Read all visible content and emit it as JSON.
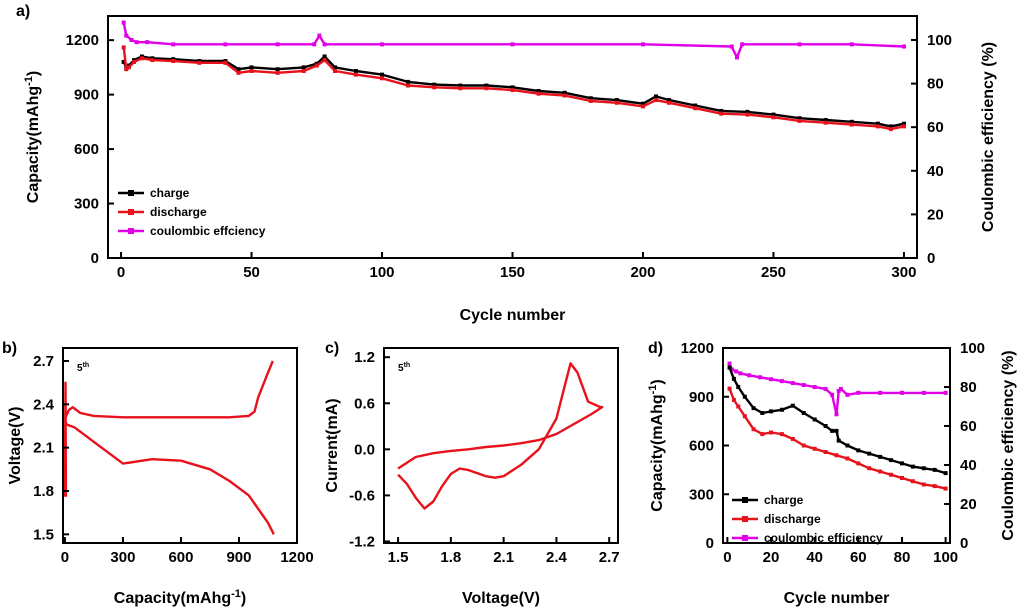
{
  "colors": {
    "charge": "#000000",
    "discharge": "#e8121c",
    "ce": "#e000e8",
    "axis": "#000000"
  },
  "chart_data": [
    {
      "panel_label": "a)",
      "type": "line",
      "xlabel": "Cycle number",
      "ylabel_left_base": "Capacity(mAhg",
      "ylabel_left_sup": "-1",
      "ylabel_left_end": ")",
      "ylabel_right": "Coulombic efficiency (%)",
      "xlim": [
        -5,
        305
      ],
      "ylim_left": [
        0,
        1333
      ],
      "ylim_right": [
        0,
        111
      ],
      "xticks": [
        "0",
        "50",
        "100",
        "150",
        "200",
        "250",
        "300"
      ],
      "yticks_left": [
        "0",
        "300",
        "600",
        "900",
        "1200"
      ],
      "yticks_right": [
        "0",
        "20",
        "40",
        "60",
        "80",
        "100"
      ],
      "legend": [
        "charge",
        "discharge",
        "coulombic effciency"
      ],
      "legend_position": "bottom-left",
      "series": [
        {
          "name": "charge",
          "axis": "left",
          "x": [
            1,
            2,
            3,
            5,
            8,
            12,
            20,
            30,
            40,
            45,
            50,
            60,
            70,
            75,
            78,
            82,
            90,
            100,
            110,
            120,
            130,
            140,
            150,
            160,
            170,
            180,
            190,
            200,
            205,
            210,
            220,
            230,
            240,
            250,
            260,
            270,
            280,
            290,
            295,
            300
          ],
          "y": [
            1080,
            1050,
            1060,
            1090,
            1110,
            1100,
            1095,
            1085,
            1085,
            1040,
            1050,
            1040,
            1050,
            1070,
            1110,
            1050,
            1030,
            1010,
            970,
            955,
            950,
            950,
            940,
            920,
            910,
            880,
            870,
            850,
            890,
            870,
            840,
            810,
            805,
            790,
            770,
            760,
            750,
            740,
            725,
            740
          ]
        },
        {
          "name": "discharge",
          "axis": "left",
          "x": [
            1,
            2,
            3,
            5,
            8,
            12,
            20,
            30,
            40,
            45,
            50,
            60,
            70,
            75,
            78,
            82,
            90,
            100,
            110,
            120,
            130,
            140,
            150,
            160,
            170,
            180,
            190,
            200,
            205,
            210,
            220,
            230,
            240,
            250,
            260,
            270,
            280,
            290,
            295,
            300
          ],
          "y": [
            1160,
            1040,
            1050,
            1080,
            1100,
            1090,
            1085,
            1075,
            1075,
            1020,
            1030,
            1020,
            1030,
            1060,
            1090,
            1030,
            1010,
            990,
            950,
            940,
            935,
            935,
            925,
            905,
            895,
            865,
            855,
            835,
            870,
            855,
            825,
            795,
            790,
            775,
            755,
            745,
            735,
            725,
            710,
            725
          ]
        },
        {
          "name": "coulombic effciency",
          "axis": "right",
          "x": [
            1,
            2,
            4,
            6,
            10,
            20,
            40,
            60,
            74,
            76,
            78,
            100,
            150,
            200,
            234,
            236,
            238,
            260,
            280,
            300
          ],
          "y": [
            108,
            102,
            100,
            99,
            99,
            98,
            98,
            98,
            98,
            102,
            98,
            98,
            98,
            98,
            97,
            92,
            98,
            98,
            98,
            97
          ]
        }
      ]
    },
    {
      "panel_label": "b)",
      "type": "line",
      "annotation": "5",
      "annotation_sup": "th",
      "xlabel_base": "Capacity(mAhg",
      "xlabel_sup": "-1",
      "xlabel_end": ")",
      "ylabel": "Voltage(V)",
      "xlim": [
        -10,
        1200
      ],
      "ylim": [
        1.44,
        2.79
      ],
      "xticks": [
        "0",
        "300",
        "600",
        "900",
        "1200"
      ],
      "yticks": [
        "1.5",
        "1.8",
        "2.1",
        "2.4",
        "2.7"
      ],
      "series": [
        {
          "name": "",
          "x": [
            0,
            10,
            50,
            150,
            300,
            450,
            600,
            750,
            850,
            950,
            1050,
            1080
          ],
          "y": [
            2.28,
            2.26,
            2.24,
            2.14,
            1.99,
            2.02,
            2.01,
            1.95,
            1.87,
            1.77,
            1.58,
            1.5
          ]
        },
        {
          "name": "",
          "x": [
            0,
            20,
            40,
            80,
            150,
            300,
            500,
            700,
            850,
            950,
            980,
            1000,
            1050,
            1075
          ],
          "y": [
            2.3,
            2.36,
            2.38,
            2.34,
            2.32,
            2.31,
            2.31,
            2.31,
            2.31,
            2.32,
            2.35,
            2.45,
            2.62,
            2.7
          ]
        },
        {
          "name": "",
          "x": [
            0,
            2,
            3,
            5
          ],
          "y": [
            1.76,
            2.3,
            2.55,
            1.76
          ]
        }
      ]
    },
    {
      "panel_label": "c)",
      "type": "line",
      "annotation": "5",
      "annotation_sup": "th",
      "xlabel": "Voltage(V)",
      "ylabel": "Current(mA)",
      "xlim": [
        1.42,
        2.75
      ],
      "ylim": [
        -1.22,
        1.32
      ],
      "xticks": [
        "1.5",
        "1.8",
        "2.1",
        "2.4",
        "2.7"
      ],
      "yticks": [
        "-1.2",
        "-0.6",
        "0.0",
        "0.6",
        "1.2"
      ],
      "series": [
        {
          "name": "",
          "x": [
            1.5,
            1.55,
            1.6,
            1.65,
            1.7,
            1.75,
            1.8,
            1.85,
            1.9,
            1.95,
            2.0,
            2.05,
            2.1,
            2.2,
            2.3,
            2.4,
            2.45,
            2.48,
            2.52,
            2.58,
            2.65,
            2.66,
            2.6,
            2.5,
            2.4,
            2.3,
            2.2,
            2.1,
            2.0,
            1.9,
            1.8,
            1.7,
            1.6,
            1.5
          ],
          "y": [
            -0.33,
            -0.45,
            -0.63,
            -0.77,
            -0.68,
            -0.48,
            -0.32,
            -0.25,
            -0.27,
            -0.31,
            -0.35,
            -0.37,
            -0.35,
            -0.2,
            0.0,
            0.4,
            0.85,
            1.12,
            1.0,
            0.62,
            0.55,
            0.55,
            0.46,
            0.33,
            0.2,
            0.12,
            0.08,
            0.05,
            0.03,
            0.0,
            -0.02,
            -0.05,
            -0.1,
            -0.25
          ]
        }
      ]
    },
    {
      "panel_label": "d)",
      "type": "line",
      "xlabel": "Cycle number",
      "ylabel_left_base": "Capacity(mAhg",
      "ylabel_left_sup": "-1",
      "ylabel_left_end": ")",
      "ylabel_right": "Coulombic efficiency (%)",
      "xlim": [
        -2,
        102
      ],
      "ylim_left": [
        0,
        1200
      ],
      "ylim_right": [
        0,
        100
      ],
      "xticks": [
        "0",
        "20",
        "40",
        "60",
        "80",
        "100"
      ],
      "yticks_left": [
        "0",
        "300",
        "600",
        "900",
        "1200"
      ],
      "yticks_right": [
        "0",
        "20",
        "40",
        "60",
        "80",
        "100"
      ],
      "legend": [
        "charge",
        "discharge",
        "coulombic efficiency"
      ],
      "legend_position": "bottom-left",
      "series": [
        {
          "name": "charge",
          "axis": "left",
          "x": [
            1,
            3,
            5,
            8,
            12,
            16,
            20,
            25,
            30,
            35,
            40,
            45,
            48,
            50,
            51,
            55,
            60,
            65,
            70,
            75,
            80,
            85,
            90,
            95,
            100
          ],
          "y": [
            1080,
            1010,
            960,
            900,
            830,
            800,
            810,
            820,
            845,
            800,
            760,
            720,
            690,
            690,
            630,
            600,
            570,
            550,
            530,
            510,
            490,
            470,
            460,
            450,
            430
          ]
        },
        {
          "name": "discharge",
          "axis": "left",
          "x": [
            1,
            3,
            5,
            8,
            12,
            16,
            20,
            25,
            30,
            35,
            40,
            45,
            50,
            55,
            60,
            65,
            70,
            75,
            80,
            85,
            90,
            95,
            100
          ],
          "y": [
            950,
            880,
            840,
            780,
            700,
            670,
            680,
            670,
            640,
            600,
            580,
            560,
            540,
            520,
            490,
            460,
            440,
            420,
            400,
            380,
            360,
            350,
            335
          ]
        },
        {
          "name": "coulombic efficiency",
          "axis": "right",
          "x": [
            1,
            2,
            4,
            6,
            10,
            15,
            20,
            25,
            30,
            35,
            40,
            45,
            48,
            50,
            51,
            52,
            55,
            60,
            70,
            80,
            90,
            100
          ],
          "y": [
            92,
            89,
            88,
            87,
            86,
            85,
            84,
            83,
            82,
            81,
            80,
            79,
            76,
            66,
            78,
            79,
            76,
            77,
            77,
            77,
            77,
            77
          ]
        }
      ]
    }
  ]
}
